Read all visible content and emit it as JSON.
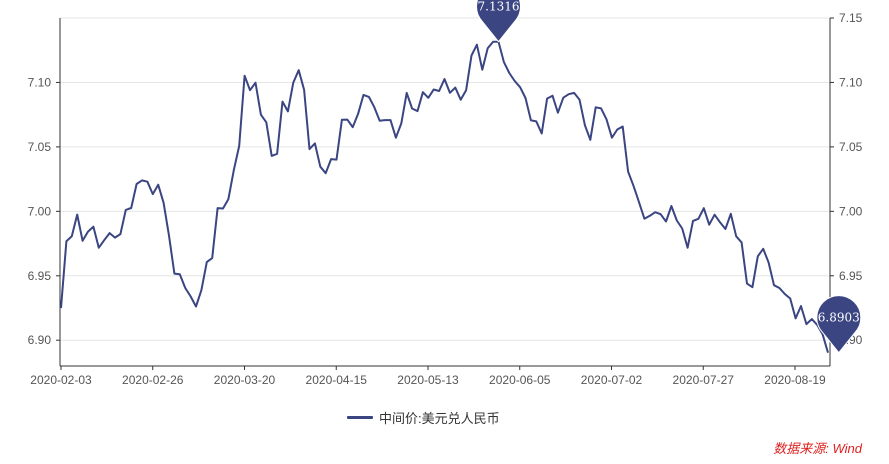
{
  "chart_data": {
    "type": "line",
    "title": "",
    "xlabel": "",
    "ylabel": "",
    "ylim": [
      6.88,
      7.15
    ],
    "yticks_left": [
      "6.90",
      "6.95",
      "7.00",
      "7.05",
      "7.10"
    ],
    "yticks_right": [
      "6.90",
      "6.95",
      "7.00",
      "7.05",
      "7.10",
      "7.15"
    ],
    "xticks": [
      "2020-02-03",
      "2020-02-26",
      "2020-03-20",
      "2020-04-15",
      "2020-05-13",
      "2020-06-05",
      "2020-07-02",
      "2020-07-27",
      "2020-08-19"
    ],
    "grid": "horizontal",
    "legend_position": "bottom-center",
    "series": [
      {
        "name": "中间价:美元兑人民币",
        "color": "#3a4582",
        "values": [
          6.9249,
          6.9768,
          6.9806,
          6.9975,
          6.9771,
          6.9843,
          6.9881,
          6.9718,
          6.9776,
          6.9831,
          6.9796,
          6.9823,
          7.0011,
          7.0026,
          7.0212,
          7.024,
          7.023,
          7.0134,
          7.0207,
          7.0066,
          6.9811,
          6.9517,
          6.9512,
          6.9406,
          6.934,
          6.9262,
          6.9389,
          6.9606,
          6.9637,
          7.0025,
          7.0022,
          7.0095,
          7.0319,
          7.0508,
          7.1052,
          7.094,
          7.0998,
          7.075,
          7.0691,
          7.043,
          7.0446,
          7.0851,
          7.0775,
          7.0999,
          7.1095,
          7.0943,
          7.0483,
          7.0527,
          7.0346,
          7.0296,
          7.0405,
          7.0401,
          7.071,
          7.0712,
          7.0653,
          7.0757,
          7.0903,
          7.0888,
          7.0808,
          7.0703,
          7.0708,
          7.0708,
          7.0571,
          7.0682,
          7.0919,
          7.0798,
          7.0778,
          7.0924,
          7.0881,
          7.0945,
          7.0934,
          7.1027,
          7.092,
          7.096,
          7.0866,
          7.0939,
          7.1209,
          7.1293,
          7.1099,
          7.1265,
          7.1316,
          7.1316,
          7.1158,
          7.1073,
          7.1011,
          7.0963,
          7.0879,
          7.0706,
          7.0698,
          7.0604,
          7.0875,
          7.0897,
          7.0765,
          7.0882,
          7.0909,
          7.0919,
          7.0867,
          7.0668,
          7.0555,
          7.0807,
          7.0799,
          7.0714,
          7.0571,
          7.0635,
          7.0658,
          7.0308,
          7.0198,
          7.0071,
          6.9943,
          6.9965,
          6.9993,
          6.9978,
          6.9921,
          7.0041,
          6.9929,
          6.9867,
          6.9718,
          6.9926,
          6.9942,
          7.0024,
          6.9896,
          6.9974,
          6.9915,
          6.9863,
          6.9981,
          6.9806,
          6.9759,
          6.9439,
          6.9411,
          6.9651,
          6.9709,
          6.9603,
          6.9427,
          6.9405,
          6.9359,
          6.9324,
          6.917,
          6.9265,
          6.9125,
          6.9164,
          6.9119,
          6.9046,
          6.8903
        ]
      }
    ],
    "markers": [
      {
        "label": "7.1316",
        "value": 7.1316,
        "index": 81
      },
      {
        "label": "6.8903",
        "value": 6.8903,
        "index": 144
      }
    ],
    "marker_color": "#3a4582"
  },
  "legend_label": "中间价:美元兑人民币",
  "source_text": "数据来源: Wind"
}
